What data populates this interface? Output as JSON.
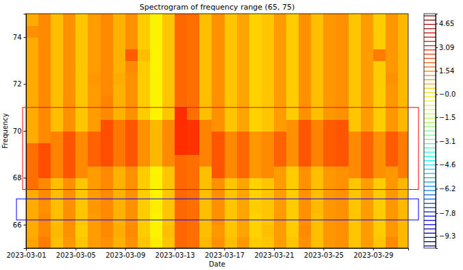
{
  "chart_data": {
    "type": "heatmap",
    "title": "Spectrogram of frequency range (65, 75)",
    "xlabel": "Date",
    "ylabel": "Frequency",
    "xlim": [
      "2023-03-01",
      "2023-03-31T20:00"
    ],
    "xticks": [
      "2023-03-01",
      "2023-03-05",
      "2023-03-09",
      "2023-03-13",
      "2023-03-17",
      "2023-03-21",
      "2023-03-25",
      "2023-03-29"
    ],
    "ylim": [
      65,
      75
    ],
    "yticks": [
      66,
      68,
      70,
      72,
      74
    ],
    "x": [
      "2023-03-01",
      "2023-03-02",
      "2023-03-03",
      "2023-03-04",
      "2023-03-05",
      "2023-03-06",
      "2023-03-07",
      "2023-03-08",
      "2023-03-09",
      "2023-03-10",
      "2023-03-11",
      "2023-03-12",
      "2023-03-13",
      "2023-03-14",
      "2023-03-15",
      "2023-03-16",
      "2023-03-17",
      "2023-03-18",
      "2023-03-19",
      "2023-03-20",
      "2023-03-21",
      "2023-03-22",
      "2023-03-23",
      "2023-03-24",
      "2023-03-25",
      "2023-03-26",
      "2023-03-27",
      "2023-03-28",
      "2023-03-29",
      "2023-03-30",
      "2023-03-31"
    ],
    "y": [
      65,
      65.5,
      66,
      66.5,
      67,
      67.5,
      68,
      68.5,
      69,
      69.5,
      70,
      70.5,
      71,
      71.5,
      72,
      72.5,
      73,
      73.5,
      74,
      74.5
    ],
    "cells": [
      [
        0.9,
        1.5,
        0.5,
        1.1,
        0.4,
        1.0,
        1.2,
        0.7,
        1.2,
        0.4,
        -0.2,
        0.4,
        1.8,
        1.7,
        0.6,
        1.2,
        0.5,
        1.1,
        0.3,
        0.4,
        1.0,
        0.4,
        1.2,
        0.5,
        1.1,
        1.2,
        0.4,
        1.0,
        0.4,
        1.3,
        0.6
      ],
      [
        0.8,
        1.3,
        0.6,
        1.2,
        0.3,
        1.0,
        1.3,
        0.8,
        1.3,
        0.3,
        -0.3,
        0.5,
        1.8,
        1.7,
        0.5,
        1.1,
        0.4,
        0.9,
        0.2,
        0.5,
        1.0,
        0.3,
        1.3,
        0.5,
        1.1,
        1.2,
        0.4,
        1.0,
        0.3,
        1.1,
        0.6
      ],
      [
        0.8,
        1.3,
        0.5,
        1.2,
        0.4,
        1.0,
        1.3,
        0.7,
        1.2,
        0.3,
        -0.3,
        0.4,
        1.8,
        1.7,
        0.5,
        1.2,
        0.4,
        0.9,
        0.2,
        0.4,
        1.0,
        0.3,
        1.2,
        0.5,
        1.1,
        1.2,
        0.4,
        1.0,
        0.3,
        1.1,
        0.6
      ],
      [
        0.8,
        1.2,
        0.5,
        1.2,
        0.4,
        1.1,
        1.3,
        0.7,
        1.2,
        0.3,
        -0.2,
        0.4,
        1.8,
        1.7,
        0.5,
        1.2,
        0.4,
        0.9,
        0.3,
        0.4,
        1.0,
        0.3,
        1.2,
        0.6,
        1.1,
        1.2,
        0.4,
        1.0,
        0.3,
        1.1,
        0.6
      ],
      [
        0.8,
        1.3,
        0.5,
        1.2,
        0.4,
        1.0,
        1.3,
        0.7,
        1.2,
        0.3,
        -0.3,
        0.4,
        1.8,
        1.7,
        0.5,
        1.2,
        0.4,
        0.9,
        0.2,
        0.4,
        1.0,
        0.3,
        1.2,
        0.5,
        1.1,
        1.2,
        0.4,
        1.0,
        0.3,
        1.1,
        0.6
      ],
      [
        1.7,
        1.3,
        0.5,
        1.2,
        0.4,
        1.0,
        1.3,
        0.7,
        1.2,
        0.3,
        -0.3,
        0.4,
        1.8,
        1.7,
        0.5,
        1.2,
        0.4,
        0.9,
        0.2,
        0.4,
        1.0,
        0.3,
        1.2,
        0.5,
        1.1,
        1.2,
        0.4,
        1.0,
        0.3,
        1.1,
        0.6
      ],
      [
        1.7,
        2.2,
        1.4,
        2.1,
        1.3,
        1.0,
        1.3,
        0.7,
        1.2,
        0.3,
        -0.3,
        0.4,
        1.8,
        1.7,
        0.5,
        2.1,
        1.3,
        1.8,
        1.1,
        1.3,
        1.0,
        0.3,
        1.2,
        0.5,
        1.1,
        1.2,
        1.3,
        1.9,
        1.2,
        1.1,
        1.5
      ],
      [
        1.7,
        2.2,
        1.4,
        2.1,
        1.3,
        1.9,
        2.2,
        1.6,
        2.1,
        1.2,
        0.6,
        1.3,
        1.8,
        1.7,
        1.4,
        2.1,
        1.3,
        1.8,
        1.1,
        1.3,
        1.9,
        1.2,
        2.1,
        1.4,
        2.0,
        2.1,
        1.3,
        1.9,
        1.2,
        2.0,
        1.5
      ],
      [
        1.7,
        2.2,
        1.4,
        2.1,
        1.3,
        1.9,
        2.2,
        1.6,
        2.1,
        1.2,
        0.6,
        1.3,
        2.7,
        2.6,
        1.4,
        2.1,
        1.3,
        1.8,
        1.1,
        1.3,
        1.9,
        1.2,
        2.1,
        1.4,
        2.0,
        2.1,
        1.3,
        1.9,
        1.2,
        2.0,
        1.5
      ],
      [
        0.8,
        1.3,
        1.4,
        2.1,
        1.3,
        1.9,
        2.2,
        1.6,
        2.1,
        1.2,
        0.6,
        1.3,
        2.7,
        2.6,
        1.4,
        2.1,
        1.3,
        1.8,
        1.1,
        1.3,
        1.9,
        1.2,
        2.1,
        1.4,
        2.0,
        2.1,
        1.3,
        1.9,
        1.2,
        2.0,
        1.5
      ],
      [
        0.8,
        1.3,
        0.5,
        1.2,
        0.4,
        1.0,
        2.2,
        1.6,
        2.1,
        1.2,
        0.6,
        1.3,
        2.7,
        2.6,
        1.4,
        1.2,
        0.4,
        0.9,
        0.2,
        0.4,
        1.0,
        1.2,
        2.1,
        1.4,
        2.0,
        2.1,
        0.4,
        1.0,
        0.3,
        1.1,
        0.6
      ],
      [
        0.8,
        1.3,
        0.5,
        1.2,
        0.4,
        1.0,
        1.3,
        0.7,
        1.2,
        0.3,
        -0.3,
        0.4,
        2.7,
        1.7,
        0.5,
        1.2,
        0.4,
        0.9,
        0.2,
        0.4,
        1.0,
        0.3,
        1.2,
        0.5,
        1.1,
        1.2,
        0.4,
        1.0,
        0.3,
        1.1,
        0.6
      ],
      [
        0.8,
        1.3,
        0.5,
        1.2,
        0.4,
        1.0,
        1.4,
        0.7,
        1.2,
        0.3,
        -0.3,
        0.4,
        1.8,
        1.7,
        0.5,
        1.2,
        0.4,
        0.9,
        0.2,
        0.4,
        1.0,
        0.3,
        1.2,
        0.5,
        1.1,
        1.2,
        0.4,
        1.0,
        0.3,
        1.1,
        0.6
      ],
      [
        0.8,
        1.3,
        0.5,
        1.2,
        0.4,
        1.0,
        1.3,
        0.7,
        1.2,
        0.3,
        -0.3,
        0.4,
        1.8,
        1.7,
        0.5,
        1.2,
        0.4,
        0.9,
        0.2,
        0.4,
        1.0,
        0.3,
        1.2,
        0.5,
        1.1,
        1.2,
        0.4,
        1.0,
        0.3,
        1.1,
        0.6
      ],
      [
        0.8,
        1.3,
        0.5,
        1.2,
        0.4,
        1.1,
        1.3,
        0.8,
        1.2,
        0.3,
        -0.3,
        0.4,
        1.8,
        1.7,
        0.5,
        1.2,
        0.4,
        0.9,
        0.2,
        0.4,
        1.0,
        0.3,
        1.2,
        0.5,
        1.1,
        1.2,
        0.4,
        1.0,
        0.3,
        1.2,
        0.6
      ],
      [
        0.8,
        1.3,
        0.5,
        1.2,
        0.4,
        1.0,
        1.3,
        0.7,
        1.3,
        0.3,
        -0.3,
        0.4,
        1.8,
        1.7,
        0.5,
        1.2,
        0.4,
        0.9,
        0.2,
        0.4,
        1.0,
        0.3,
        1.2,
        0.5,
        1.1,
        1.2,
        0.4,
        1.0,
        0.3,
        1.1,
        0.6
      ],
      [
        0.8,
        1.3,
        0.5,
        1.2,
        0.4,
        1.0,
        1.3,
        0.7,
        2.0,
        0.5,
        -0.3,
        0.4,
        1.8,
        1.7,
        0.5,
        1.2,
        0.4,
        0.9,
        0.2,
        0.4,
        1.0,
        0.3,
        1.2,
        0.5,
        1.1,
        1.2,
        0.4,
        1.0,
        1.5,
        1.1,
        0.6
      ],
      [
        0.8,
        1.3,
        0.5,
        1.2,
        0.4,
        1.0,
        1.3,
        0.7,
        1.2,
        0.3,
        -0.3,
        0.4,
        1.8,
        1.7,
        0.5,
        1.2,
        0.4,
        0.9,
        0.2,
        0.4,
        1.0,
        0.3,
        1.2,
        0.5,
        1.1,
        1.2,
        0.4,
        1.0,
        0.3,
        1.1,
        0.6
      ],
      [
        1.2,
        1.3,
        0.5,
        1.2,
        0.4,
        1.0,
        1.3,
        0.7,
        1.2,
        0.3,
        -0.3,
        0.4,
        1.8,
        1.7,
        0.5,
        1.2,
        0.4,
        0.9,
        0.2,
        0.4,
        1.0,
        0.3,
        1.2,
        0.5,
        1.1,
        1.2,
        0.4,
        1.0,
        0.3,
        1.1,
        0.6
      ],
      [
        0.8,
        1.3,
        0.5,
        1.2,
        0.4,
        1.0,
        1.3,
        0.7,
        1.2,
        0.3,
        -0.3,
        0.4,
        1.8,
        1.7,
        0.5,
        1.2,
        0.4,
        0.9,
        0.2,
        0.4,
        1.0,
        0.3,
        1.2,
        0.5,
        1.1,
        1.2,
        0.4,
        1.0,
        0.3,
        1.1,
        0.6
      ]
    ],
    "colorbar": {
      "range": [
        -10.1,
        5.3
      ],
      "ticks": [
        4.65,
        3.09,
        1.54,
        {
          "value": 0,
          "label": "−0.0"
        },
        {
          "value": -1.5,
          "label": "−1.5"
        },
        {
          "value": -3.1,
          "label": "−3.1"
        },
        {
          "value": -4.6,
          "label": "−4.6"
        },
        {
          "value": -6.2,
          "label": "−6.2"
        },
        {
          "value": -7.8,
          "label": "−7.8"
        },
        {
          "value": -9.3,
          "label": "−9.3"
        }
      ]
    },
    "regions": [
      {
        "ylim": [
          67.5,
          71
        ],
        "color": "red"
      },
      {
        "ylim": [
          66.2,
          67.1
        ],
        "color": "blue"
      }
    ]
  }
}
